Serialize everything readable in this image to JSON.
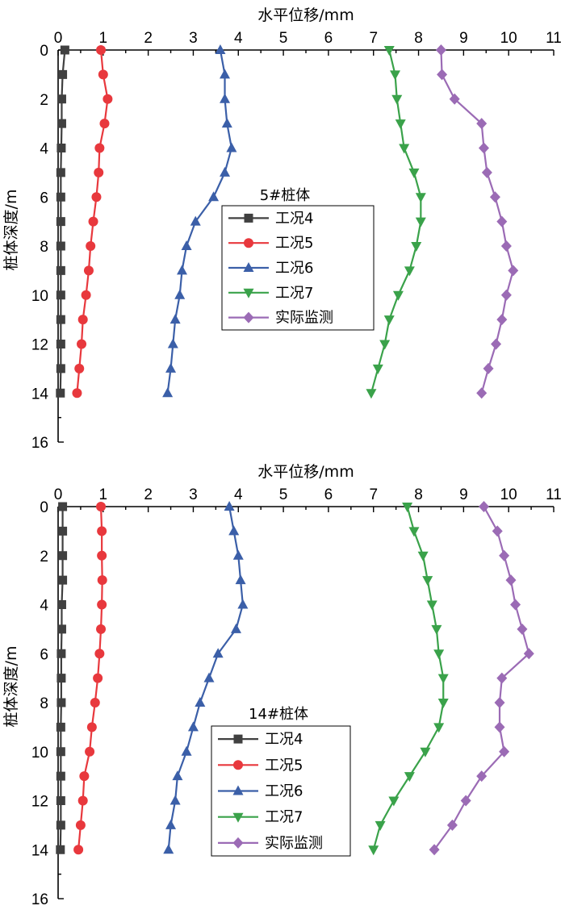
{
  "colors": {
    "s4": "#404040",
    "s5": "#e8383d",
    "s6": "#3b5fa8",
    "s7": "#3aa24a",
    "monitor": "#9b6bb5"
  },
  "chart_data": [
    {
      "type": "line",
      "title": "5#桩体",
      "xlabel": "水平位移/mm",
      "ylabel": "桩体深度/m",
      "xlim": [
        0,
        11
      ],
      "ylim": [
        0,
        16
      ],
      "y_inverted": true,
      "xticks": [
        "0",
        "1",
        "2",
        "3",
        "4",
        "5",
        "6",
        "7",
        "8",
        "9",
        "10",
        "11"
      ],
      "yticks": [
        "0",
        "2",
        "4",
        "6",
        "8",
        "10",
        "12",
        "14",
        "16"
      ],
      "depth": [
        0,
        1,
        2,
        3,
        4,
        5,
        6,
        7,
        8,
        9,
        10,
        11,
        12,
        13,
        14
      ],
      "series": [
        {
          "name": "工况4",
          "marker": "square",
          "color_key": "s4",
          "values": [
            0.15,
            0.1,
            0.08,
            0.08,
            0.07,
            0.06,
            0.06,
            0.06,
            0.06,
            0.06,
            0.06,
            0.06,
            0.06,
            0.06,
            0.05
          ]
        },
        {
          "name": "工况5",
          "marker": "circle",
          "color_key": "s5",
          "values": [
            0.95,
            1.0,
            1.1,
            1.03,
            0.92,
            0.9,
            0.85,
            0.78,
            0.72,
            0.68,
            0.62,
            0.55,
            0.52,
            0.47,
            0.42
          ]
        },
        {
          "name": "工况6",
          "marker": "triangle-up",
          "color_key": "s6",
          "values": [
            3.6,
            3.7,
            3.7,
            3.75,
            3.85,
            3.7,
            3.45,
            3.05,
            2.85,
            2.75,
            2.7,
            2.6,
            2.55,
            2.5,
            2.43
          ]
        },
        {
          "name": "工况7",
          "marker": "triangle-down",
          "color_key": "s7",
          "values": [
            7.35,
            7.48,
            7.52,
            7.6,
            7.68,
            7.9,
            8.05,
            8.05,
            7.95,
            7.8,
            7.55,
            7.35,
            7.25,
            7.1,
            6.95
          ]
        },
        {
          "name": "实际监测",
          "marker": "diamond",
          "color_key": "monitor",
          "values": [
            8.5,
            8.52,
            8.8,
            9.4,
            9.45,
            9.52,
            9.7,
            9.85,
            9.95,
            10.1,
            9.95,
            9.85,
            9.72,
            9.55,
            9.4
          ]
        }
      ]
    },
    {
      "type": "line",
      "title": "14#桩体",
      "xlabel": "水平位移/mm",
      "ylabel": "桩体深度/m",
      "xlim": [
        0,
        11
      ],
      "ylim": [
        0,
        16
      ],
      "y_inverted": true,
      "xticks": [
        "0",
        "1",
        "2",
        "3",
        "4",
        "5",
        "6",
        "7",
        "8",
        "9",
        "10",
        "11"
      ],
      "yticks": [
        "0",
        "2",
        "4",
        "6",
        "8",
        "10",
        "12",
        "14",
        "16"
      ],
      "depth": [
        0,
        1,
        2,
        3,
        4,
        5,
        6,
        7,
        8,
        9,
        10,
        11,
        12,
        13,
        14
      ],
      "series": [
        {
          "name": "工况4",
          "marker": "square",
          "color_key": "s4",
          "values": [
            0.1,
            0.1,
            0.1,
            0.1,
            0.08,
            0.08,
            0.07,
            0.07,
            0.07,
            0.06,
            0.06,
            0.06,
            0.06,
            0.06,
            0.05
          ]
        },
        {
          "name": "工况5",
          "marker": "circle",
          "color_key": "s5",
          "values": [
            0.95,
            0.97,
            0.97,
            0.98,
            0.97,
            0.95,
            0.92,
            0.88,
            0.82,
            0.75,
            0.7,
            0.58,
            0.55,
            0.5,
            0.45
          ]
        },
        {
          "name": "工况6",
          "marker": "triangle-up",
          "color_key": "s6",
          "values": [
            3.8,
            3.9,
            4.0,
            4.05,
            4.1,
            3.95,
            3.55,
            3.35,
            3.15,
            3.0,
            2.85,
            2.65,
            2.6,
            2.5,
            2.45
          ]
        },
        {
          "name": "工况7",
          "marker": "triangle-down",
          "color_key": "s7",
          "values": [
            7.75,
            7.9,
            8.1,
            8.2,
            8.3,
            8.4,
            8.45,
            8.55,
            8.55,
            8.45,
            8.15,
            7.8,
            7.45,
            7.15,
            7.0
          ]
        },
        {
          "name": "实际监测",
          "marker": "diamond",
          "color_key": "monitor",
          "values": [
            9.45,
            9.75,
            9.9,
            10.05,
            10.15,
            10.3,
            10.45,
            9.85,
            9.8,
            9.8,
            9.9,
            9.4,
            9.05,
            8.75,
            8.35
          ]
        }
      ]
    }
  ]
}
